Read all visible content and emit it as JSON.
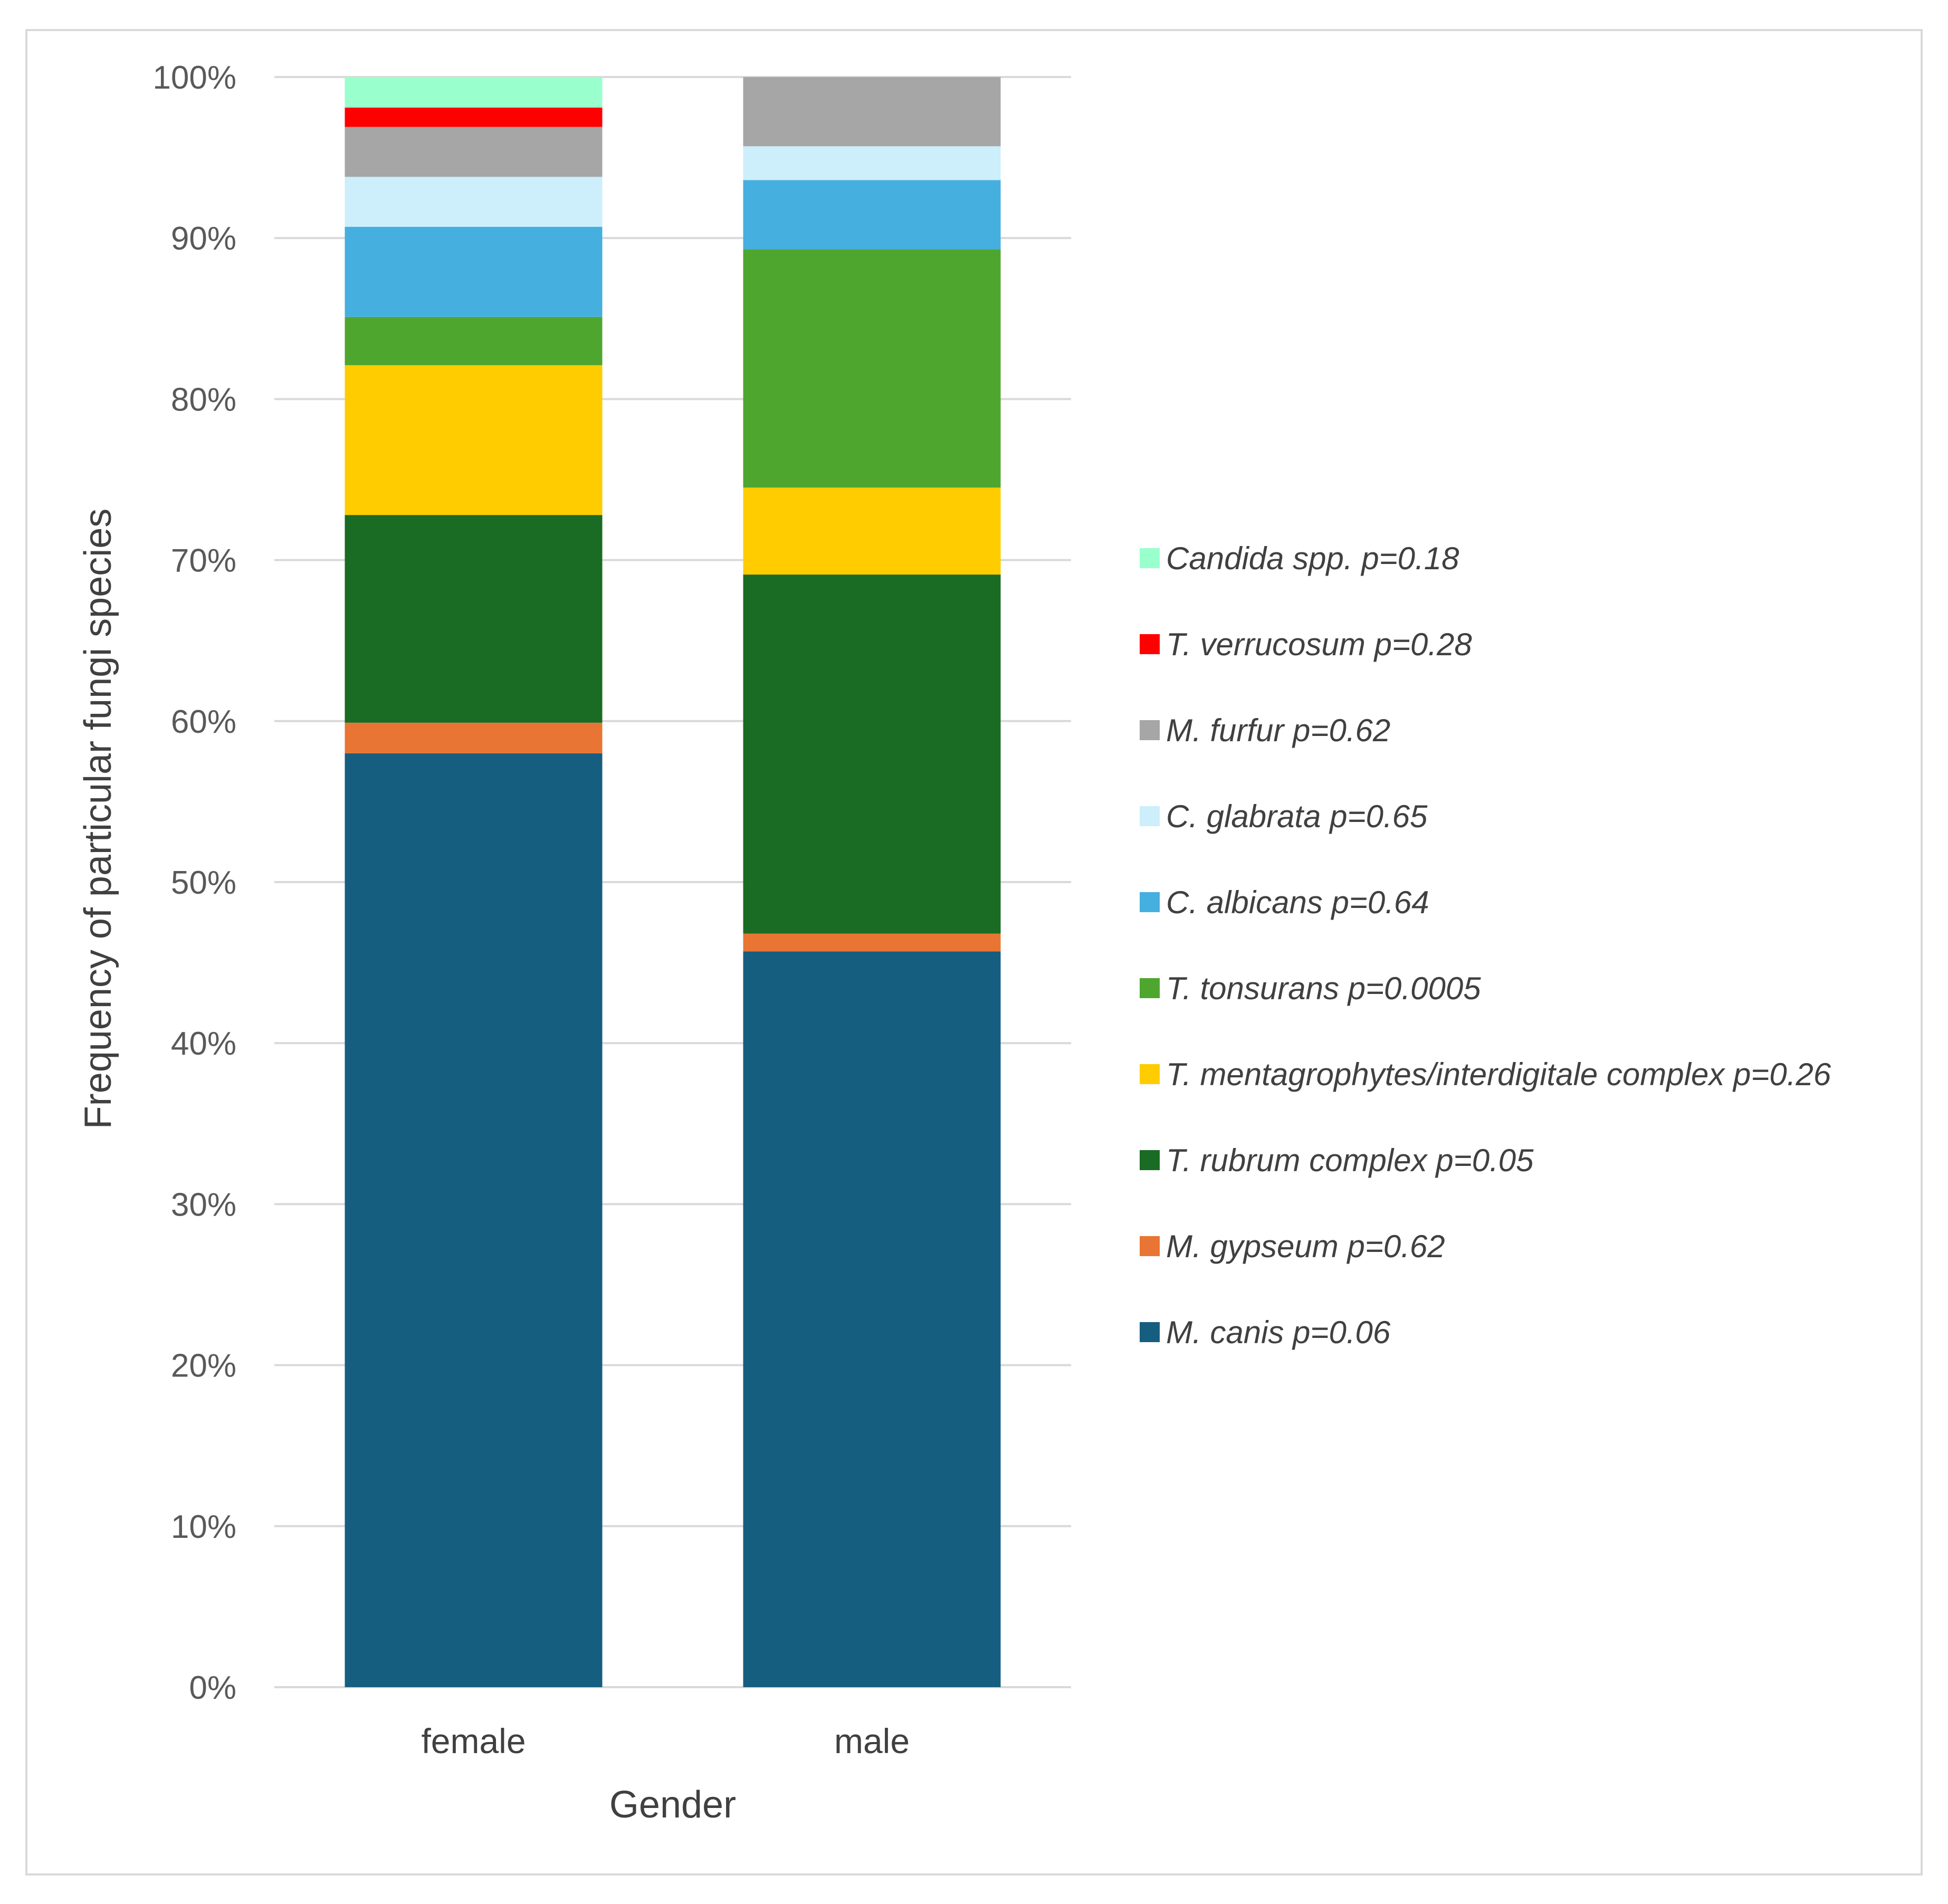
{
  "chart_data": {
    "type": "bar",
    "stacked": true,
    "normalized": true,
    "title": "",
    "xlabel": "Gender",
    "ylabel": "Frequency of particular fungi species",
    "ylim": [
      0,
      100
    ],
    "yticks": [
      "0%",
      "10%",
      "20%",
      "30%",
      "40%",
      "50%",
      "60%",
      "70%",
      "80%",
      "90%",
      "100%"
    ],
    "grid": true,
    "legend_position": "right",
    "categories": [
      "female",
      "male"
    ],
    "series": [
      {
        "name": "M. canis p=0.06",
        "color": "#165e80",
        "values": [
          58.0,
          45.7
        ]
      },
      {
        "name": "M. gypseum p=0.62",
        "color": "#e87533",
        "values": [
          1.9,
          1.1
        ]
      },
      {
        "name": "T. rubrum complex p=0.05",
        "color": "#1a6b23",
        "values": [
          12.9,
          22.3
        ]
      },
      {
        "name": "T. mentagrophytes/interdigitale complex p=0.26",
        "color": "#ffcc00",
        "values": [
          9.3,
          5.4
        ]
      },
      {
        "name": "T. tonsurans p=0.0005",
        "color": "#4fa62f",
        "values": [
          3.0,
          14.8
        ]
      },
      {
        "name": "C. albicans p=0.64",
        "color": "#45afdf",
        "values": [
          5.6,
          4.3
        ]
      },
      {
        "name": "C. glabrata p=0.65",
        "color": "#cdeefb",
        "values": [
          3.1,
          2.1
        ]
      },
      {
        "name": "M. furfur p=0.62",
        "color": "#a6a6a6",
        "values": [
          3.1,
          4.3
        ]
      },
      {
        "name": "T. verrucosum p=0.28",
        "color": "#ff0000",
        "values": [
          1.2,
          0.0
        ]
      },
      {
        "name": "Candida spp. p=0.18",
        "color": "#99ffcc",
        "values": [
          1.9,
          0.0
        ]
      }
    ]
  }
}
